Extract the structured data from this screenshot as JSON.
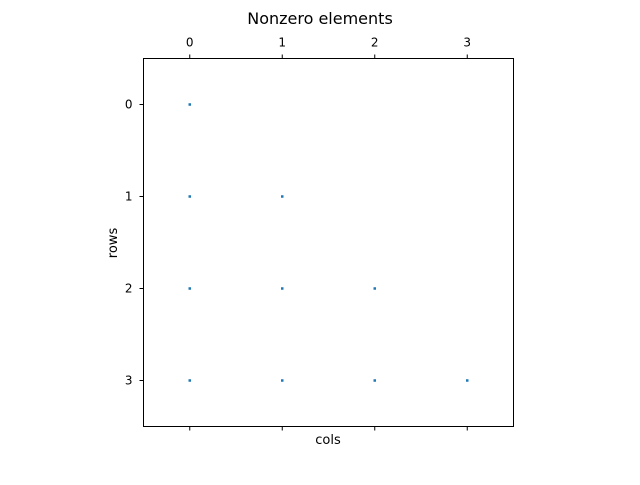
{
  "chart_data": {
    "type": "scatter",
    "title": "Nonzero elements",
    "xlabel": "cols",
    "ylabel": "rows",
    "x_ticks": [
      0,
      1,
      2,
      3
    ],
    "y_ticks": [
      0,
      1,
      2,
      3
    ],
    "xlim": [
      -0.5,
      3.5
    ],
    "ylim": [
      3.5,
      -0.5
    ],
    "x_tick_labels_position": "top",
    "grid": false,
    "marker_color": "#1f77b4",
    "points": [
      {
        "col": 0,
        "row": 0
      },
      {
        "col": 0,
        "row": 1
      },
      {
        "col": 1,
        "row": 1
      },
      {
        "col": 0,
        "row": 2
      },
      {
        "col": 1,
        "row": 2
      },
      {
        "col": 2,
        "row": 2
      },
      {
        "col": 0,
        "row": 3
      },
      {
        "col": 1,
        "row": 3
      },
      {
        "col": 2,
        "row": 3
      },
      {
        "col": 3,
        "row": 3
      }
    ]
  }
}
